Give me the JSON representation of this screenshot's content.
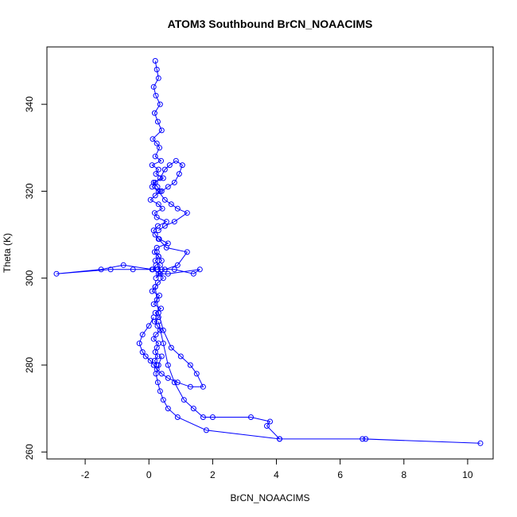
{
  "chart_data": {
    "type": "line",
    "title": "ATOM3 Southbound BrCN_NOAACIMS",
    "xlabel": "BrCN_NOAACIMS",
    "ylabel": "Theta (K)",
    "xlim": [
      -3.2,
      10.8
    ],
    "ylim": [
      258.4,
      353.2
    ],
    "x_ticks": [
      -2,
      0,
      2,
      4,
      6,
      8,
      10
    ],
    "y_ticks": [
      260,
      280,
      300,
      320,
      340
    ],
    "grid": false,
    "legend": "none",
    "color": "#0000ff",
    "series": [
      {
        "x": [
          0.2,
          0.25,
          0.3,
          0.15,
          0.22,
          0.35,
          0.18,
          0.28,
          0.4,
          0.12,
          0.25,
          0.33,
          0.2,
          0.38,
          0.1,
          0.3,
          0.22,
          0.45,
          0.15,
          0.27,
          0.35,
          0.2,
          0.05,
          0.3,
          0.42,
          0.18,
          0.25,
          0.55,
          0.28,
          0.15,
          0.2,
          0.32,
          0.6,
          0.25,
          0.18,
          0.3,
          0.4,
          0.22,
          0.12,
          0.35,
          0.45,
          0.28,
          0.2,
          0.1,
          0.33,
          0.25,
          0.15,
          0.38,
          0.2,
          0.3,
          0.18,
          0.27,
          0.35,
          0.22,
          0.15,
          0.3,
          0.25,
          0.2,
          0.28,
          0.18,
          0.25
        ],
        "y": [
          350,
          348,
          346,
          344,
          342,
          340,
          338,
          336,
          334,
          332,
          331,
          330,
          328,
          327,
          326,
          325,
          324,
          323,
          322,
          321,
          320,
          319,
          318,
          317,
          316,
          315,
          314,
          313,
          312,
          311,
          310,
          309,
          308,
          307,
          306,
          305,
          304,
          303,
          302,
          301,
          300,
          299,
          298,
          297,
          296,
          295,
          294,
          293,
          292,
          291,
          290,
          289,
          288,
          287,
          286,
          285,
          284,
          283,
          282,
          281,
          280
        ]
      },
      {
        "x": [
          0.25,
          0.3,
          0.2,
          0.35,
          0.28,
          -0.5,
          -1.2,
          -2.9,
          -1.5,
          -0.8,
          0.1,
          0.25,
          0.4,
          0.8,
          1.4,
          1.6,
          0.6,
          0.3,
          0.22,
          0.35,
          0.5,
          0.9,
          1.2,
          0.55,
          0.3
        ],
        "y": [
          306,
          305,
          304,
          303,
          302,
          302,
          302,
          301,
          302,
          303,
          302,
          302,
          302,
          302,
          301,
          302,
          301,
          301,
          300,
          301,
          302,
          303,
          306,
          307,
          309
        ]
      },
      {
        "x": [
          0.3,
          0.45,
          0.6,
          0.8,
          1.1,
          1.4,
          1.7,
          2.0,
          3.2,
          3.8,
          3.7,
          4.1,
          6.8,
          10.4,
          6.7,
          4.1,
          1.8,
          0.9,
          0.6,
          0.45,
          0.35,
          0.28,
          0.22,
          0.3,
          0.4
        ],
        "y": [
          290,
          285,
          280,
          276,
          272,
          270,
          268,
          268,
          268,
          267,
          266,
          263,
          263,
          262,
          263,
          263,
          265,
          268,
          270,
          272,
          274,
          276,
          278,
          280,
          282
        ]
      },
      {
        "x": [
          0.2,
          0.3,
          0.45,
          0.7,
          1.0,
          1.3,
          1.5,
          1.7,
          1.3,
          0.9,
          0.6,
          0.4,
          0.25,
          0.15,
          0.05,
          -0.1,
          -0.2,
          -0.3,
          -0.2,
          0.0,
          0.15
        ],
        "y": [
          298,
          292,
          288,
          284,
          282,
          280,
          278,
          275,
          275,
          276,
          277,
          278,
          279,
          280,
          281,
          282,
          283,
          285,
          287,
          289,
          291
        ]
      },
      {
        "x": [
          0.4,
          0.6,
          0.8,
          0.95,
          1.05,
          0.85,
          0.65,
          0.5,
          0.35,
          0.2,
          0.1,
          0.3,
          0.5,
          0.7,
          0.9,
          1.2,
          0.8,
          0.5,
          0.3
        ],
        "y": [
          320,
          321,
          322,
          324,
          326,
          327,
          326,
          325,
          323,
          322,
          321,
          320,
          318,
          317,
          316,
          315,
          313,
          312,
          311
        ]
      }
    ]
  }
}
